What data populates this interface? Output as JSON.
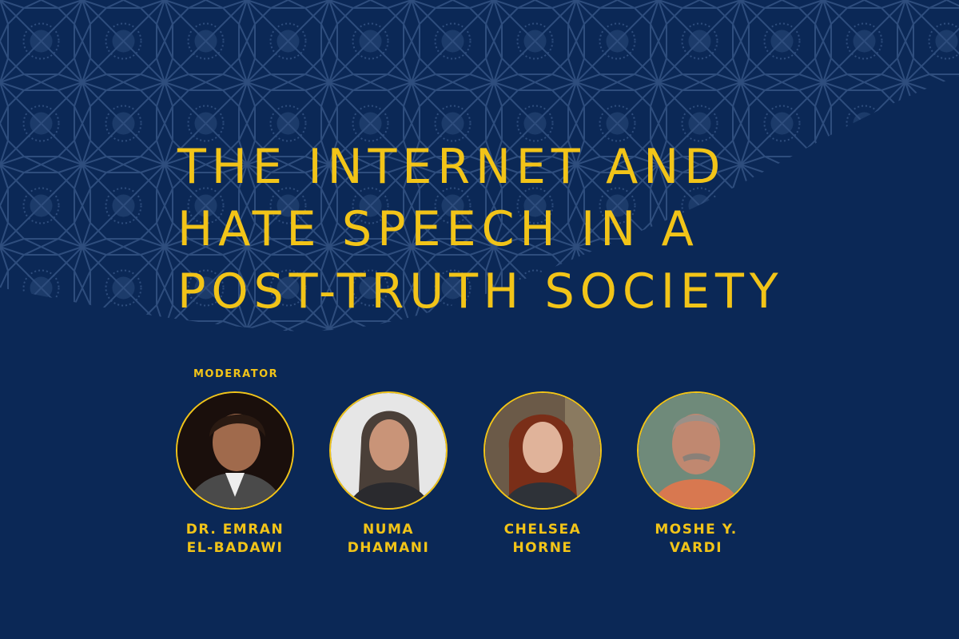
{
  "title": {
    "lines": [
      "THE INTERNET AND",
      "HATE SPEECH IN A",
      "POST-TRUTH SOCIETY"
    ]
  },
  "colors": {
    "background": "#0b2856",
    "pattern": "#2e4d7d",
    "accent": "#f2c418"
  },
  "moderator_label": "MODERATOR",
  "speakers": [
    {
      "name_line1": "DR. EMRAN",
      "name_line2": "EL-BADAWI",
      "role": "moderator"
    },
    {
      "name_line1": "NUMA",
      "name_line2": "DHAMANI"
    },
    {
      "name_line1": "CHELSEA",
      "name_line2": "HORNE"
    },
    {
      "name_line1": "MOSHE Y.",
      "name_line2": "VARDI"
    }
  ]
}
